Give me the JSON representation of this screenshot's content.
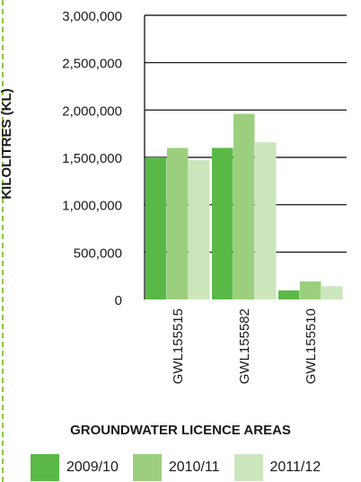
{
  "chart_data": {
    "type": "bar",
    "ylabel": "KILOLITRES (KL)",
    "xlabel": "GROUNDWATER LICENCE AREAS",
    "categories": [
      "GWL155515",
      "GWL155582",
      "GWL155510"
    ],
    "ylim": [
      0,
      3000000
    ],
    "yticks": [
      "0",
      "500,000",
      "1,000,000",
      "1,500,000",
      "2,000,000",
      "2,500,000",
      "3,000,000"
    ],
    "ytick_values": [
      0,
      500000,
      1000000,
      1500000,
      2000000,
      2500000,
      3000000
    ],
    "grid": true,
    "legend_position": "bottom",
    "series": [
      {
        "name": "2009/10",
        "color": "#5ab946",
        "values": [
          1500000,
          1600000,
          95000
        ]
      },
      {
        "name": "2010/11",
        "color": "#9ccf7d",
        "values": [
          1600000,
          1960000,
          190000
        ]
      },
      {
        "name": "2011/12",
        "color": "#cbe6bd",
        "values": [
          1470000,
          1660000,
          140000
        ]
      }
    ]
  }
}
